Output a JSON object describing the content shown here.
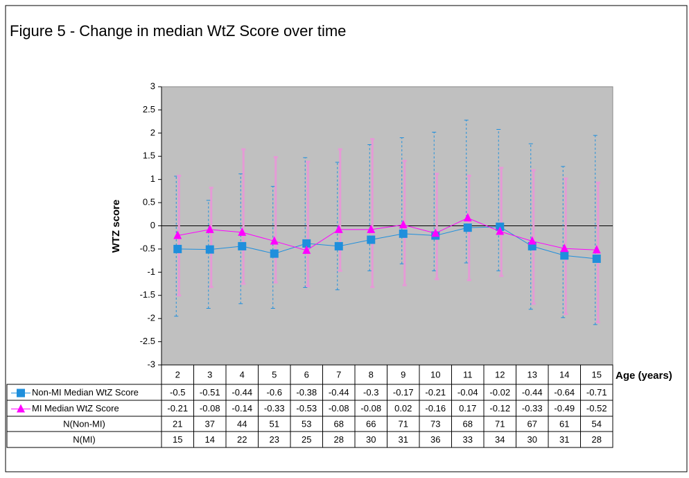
{
  "chart_data": {
    "type": "line",
    "title": "Figure 5 - Change in median WtZ Score over time",
    "y_label": "WTZ score",
    "x_label": "Age (years)",
    "categories": [
      2,
      3,
      4,
      5,
      6,
      7,
      8,
      9,
      10,
      11,
      12,
      13,
      14,
      15
    ],
    "ylim": [
      -3,
      3
    ],
    "yticks": [
      -3,
      -2.5,
      -2,
      -1.5,
      -1,
      -0.5,
      0,
      0.5,
      1,
      1.5,
      2,
      2.5,
      3
    ],
    "series": [
      {
        "name": "Non-MI Median WtZ Score",
        "color": "#1f8fdc",
        "marker": "square",
        "error_color": "#1f8fdc",
        "error_style": "dashed",
        "values": [
          -0.5,
          -0.51,
          -0.44,
          -0.6,
          -0.38,
          -0.44,
          -0.3,
          -0.17,
          -0.21,
          -0.04,
          -0.02,
          -0.44,
          -0.64,
          -0.71
        ],
        "error_low": [
          -1.95,
          -1.78,
          -1.68,
          -1.78,
          -1.33,
          -1.38,
          -0.97,
          -0.82,
          -0.97,
          -0.8,
          -0.97,
          -1.8,
          -1.98,
          -2.13
        ],
        "error_high": [
          1.07,
          0.55,
          1.12,
          0.85,
          1.47,
          1.37,
          1.75,
          1.9,
          2.02,
          2.28,
          2.08,
          1.77,
          1.28,
          1.95
        ]
      },
      {
        "name": "MI Median WtZ Score",
        "color": "#ff00ff",
        "marker": "triangle",
        "error_color": "#e59ad6",
        "error_style": "solid",
        "values": [
          -0.21,
          -0.08,
          -0.14,
          -0.33,
          -0.53,
          -0.08,
          -0.08,
          0.02,
          -0.16,
          0.17,
          -0.12,
          -0.33,
          -0.49,
          -0.52
        ],
        "error_low": [
          -1.5,
          -1.32,
          -1.25,
          -1.22,
          -1.3,
          -0.97,
          -1.32,
          -1.28,
          -1.15,
          -1.17,
          -1.08,
          -1.68,
          -1.9,
          -2.08
        ],
        "error_high": [
          1.08,
          0.82,
          1.65,
          1.48,
          1.38,
          1.65,
          1.87,
          1.4,
          1.12,
          1.08,
          1.25,
          1.2,
          1.02,
          0.93
        ]
      }
    ],
    "counts": [
      {
        "name": "N(Non-MI)",
        "values": [
          21,
          37,
          44,
          51,
          53,
          68,
          66,
          71,
          73,
          68,
          71,
          67,
          61,
          54
        ]
      },
      {
        "name": "N(MI)",
        "values": [
          15,
          14,
          22,
          23,
          25,
          28,
          30,
          31,
          36,
          33,
          34,
          30,
          31,
          28
        ]
      }
    ],
    "plot_background": "#c0c0c0",
    "zero_line": true
  }
}
